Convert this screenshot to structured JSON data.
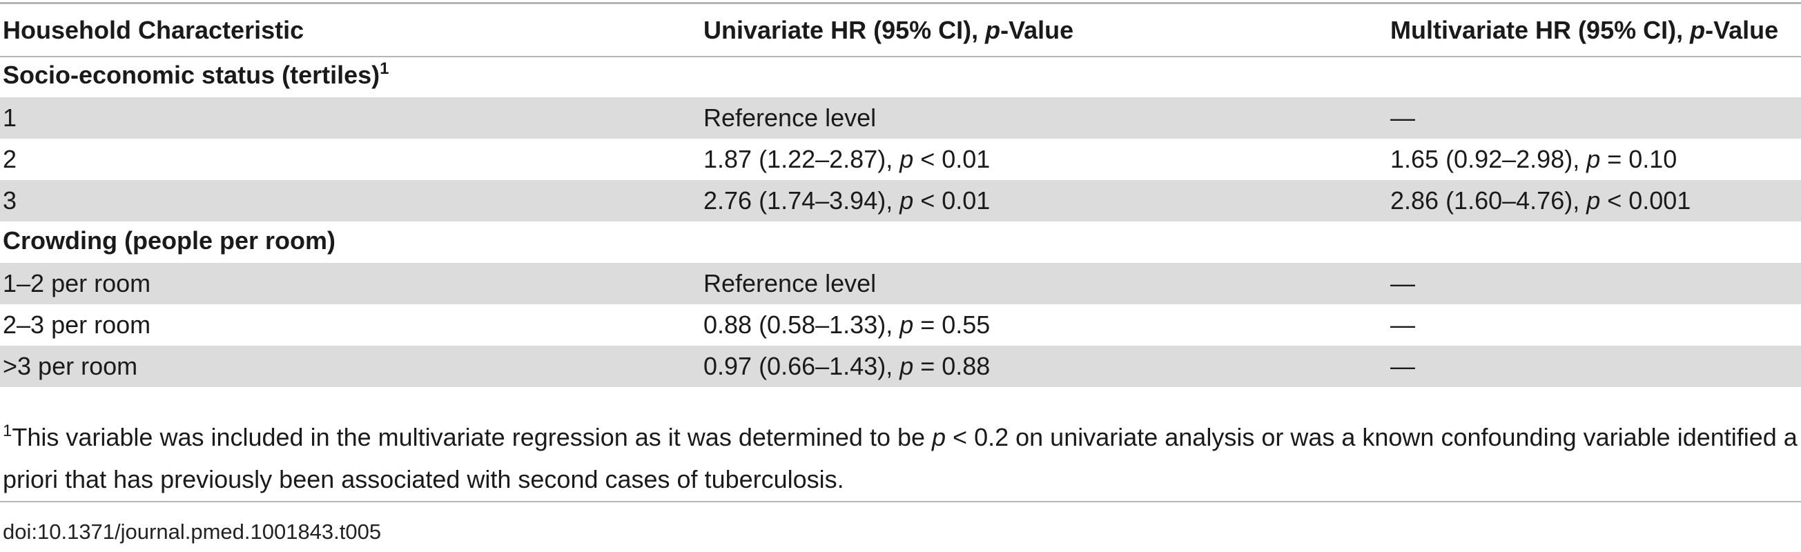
{
  "table": {
    "headers": [
      {
        "pre": "Household Characteristic",
        "em": "",
        "post": ""
      },
      {
        "pre": "Univariate HR (95% CI), ",
        "em": "p",
        "post": "-Value"
      },
      {
        "pre": "Multivariate HR (95% CI), ",
        "em": "p",
        "post": "-Value"
      }
    ],
    "sections": [
      {
        "title": "Socio-economic status (tertiles)",
        "title_sup": "1",
        "rows": [
          {
            "label": "1",
            "uni": {
              "pre": "Reference level",
              "em": "",
              "post": ""
            },
            "multi": {
              "pre": "—",
              "em": "",
              "post": ""
            }
          },
          {
            "label": "2",
            "uni": {
              "pre": "1.87 (1.22–2.87), ",
              "em": "p",
              "post": " < 0.01"
            },
            "multi": {
              "pre": "1.65 (0.92–2.98), ",
              "em": "p",
              "post": " = 0.10"
            }
          },
          {
            "label": "3",
            "uni": {
              "pre": "2.76 (1.74–3.94), ",
              "em": "p",
              "post": " < 0.01"
            },
            "multi": {
              "pre": "2.86 (1.60–4.76), ",
              "em": "p",
              "post": " < 0.001"
            }
          }
        ]
      },
      {
        "title": "Crowding (people per room)",
        "title_sup": "",
        "rows": [
          {
            "label": "1–2 per room",
            "uni": {
              "pre": "Reference level",
              "em": "",
              "post": ""
            },
            "multi": {
              "pre": "—",
              "em": "",
              "post": ""
            }
          },
          {
            "label": "2–3 per room",
            "uni": {
              "pre": "0.88 (0.58–1.33), ",
              "em": "p",
              "post": " = 0.55"
            },
            "multi": {
              "pre": "—",
              "em": "",
              "post": ""
            }
          },
          {
            "label": ">3 per room",
            "uni": {
              "pre": "0.97 (0.66–1.43), ",
              "em": "p",
              "post": " = 0.88"
            },
            "multi": {
              "pre": "—",
              "em": "",
              "post": ""
            }
          }
        ]
      }
    ]
  },
  "footnote": {
    "sup": "1",
    "pre": "This variable was included in the multivariate regression as it was determined to be ",
    "em": "p",
    "post": " < 0.2 on univariate analysis or was a known confounding variable identified a priori that has previously been associated with second cases of tuberculosis."
  },
  "doi": "doi:10.1371/journal.pmed.1001843.t005"
}
